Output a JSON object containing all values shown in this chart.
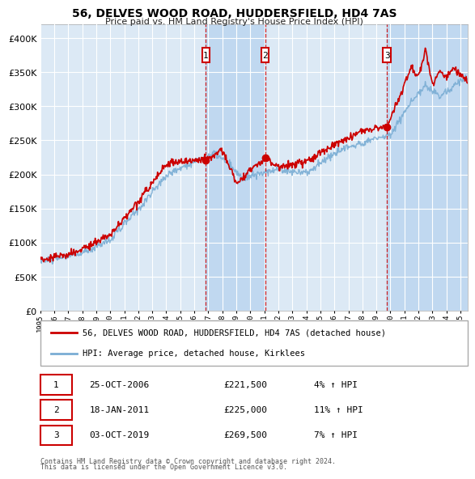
{
  "title": "56, DELVES WOOD ROAD, HUDDERSFIELD, HD4 7AS",
  "subtitle": "Price paid vs. HM Land Registry's House Price Index (HPI)",
  "background_color": "#ffffff",
  "plot_bg_color": "#dce9f5",
  "shade_color": "#c0d8f0",
  "grid_color": "#ffffff",
  "sale_color": "#cc0000",
  "hpi_color": "#7aadd4",
  "ylim": [
    0,
    420000
  ],
  "yticks": [
    0,
    50000,
    100000,
    150000,
    200000,
    250000,
    300000,
    350000,
    400000
  ],
  "ytick_labels": [
    "£0",
    "£50K",
    "£100K",
    "£150K",
    "£200K",
    "£250K",
    "£300K",
    "£350K",
    "£400K"
  ],
  "x_start_year": 1995,
  "x_end_year": 2025,
  "sales": [
    {
      "date_num": 2006.82,
      "price": 221500,
      "label": "1",
      "date_str": "25-OCT-2006",
      "pct": "4%"
    },
    {
      "date_num": 2011.05,
      "price": 225000,
      "label": "2",
      "date_str": "18-JAN-2011",
      "pct": "11%"
    },
    {
      "date_num": 2019.75,
      "price": 269500,
      "label": "3",
      "date_str": "03-OCT-2019",
      "pct": "7%"
    }
  ],
  "legend_sale_label": "56, DELVES WOOD ROAD, HUDDERSFIELD, HD4 7AS (detached house)",
  "legend_hpi_label": "HPI: Average price, detached house, Kirklees",
  "footer1": "Contains HM Land Registry data © Crown copyright and database right 2024.",
  "footer2": "This data is licensed under the Open Government Licence v3.0."
}
